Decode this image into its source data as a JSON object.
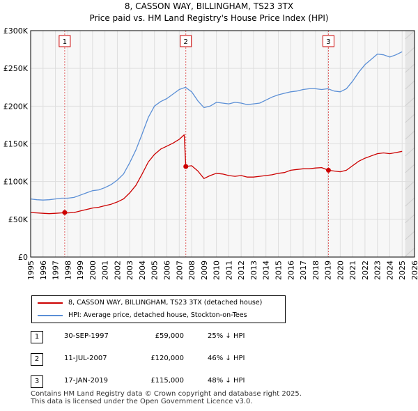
{
  "chart_data": {
    "type": "line",
    "title": "8, CASSON WAY, BILLINGHAM, TS23 3TX",
    "subtitle": "Price paid vs. HM Land Registry's House Price Index (HPI)",
    "xlabel": "",
    "ylabel": "",
    "xlim": [
      1995,
      2026
    ],
    "ylim": [
      0,
      300000
    ],
    "x_ticks": [
      "1995",
      "1996",
      "1997",
      "1998",
      "1999",
      "2000",
      "2001",
      "2002",
      "2003",
      "2004",
      "2005",
      "2006",
      "2007",
      "2008",
      "2009",
      "2010",
      "2011",
      "2012",
      "2013",
      "2014",
      "2015",
      "2016",
      "2017",
      "2018",
      "2019",
      "2020",
      "2021",
      "2022",
      "2023",
      "2024",
      "2025",
      "2026"
    ],
    "y_ticks": [
      {
        "value": 0,
        "label": "£0"
      },
      {
        "value": 50000,
        "label": "£50K"
      },
      {
        "value": 100000,
        "label": "£100K"
      },
      {
        "value": 150000,
        "label": "£150K"
      },
      {
        "value": 200000,
        "label": "£200K"
      },
      {
        "value": 250000,
        "label": "£250K"
      },
      {
        "value": 300000,
        "label": "£300K"
      }
    ],
    "grid": true,
    "shade_range": [
      2025.25,
      2026
    ],
    "series": [
      {
        "name": "8, CASSON WAY, BILLINGHAM, TS23 3TX (detached house)",
        "color": "#cc0000",
        "x": [
          1995.0,
          1995.5,
          1996.0,
          1996.5,
          1997.0,
          1997.5,
          1997.75,
          1998.0,
          1998.5,
          1999.0,
          1999.5,
          2000.0,
          2000.5,
          2001.0,
          2001.5,
          2002.0,
          2002.5,
          2003.0,
          2003.5,
          2004.0,
          2004.5,
          2005.0,
          2005.5,
          2006.0,
          2006.5,
          2007.0,
          2007.4,
          2007.53,
          2008.0,
          2008.5,
          2009.0,
          2009.5,
          2010.0,
          2010.5,
          2011.0,
          2011.5,
          2012.0,
          2012.5,
          2013.0,
          2013.5,
          2014.0,
          2014.5,
          2015.0,
          2015.5,
          2016.0,
          2016.5,
          2017.0,
          2017.5,
          2018.0,
          2018.5,
          2019.05,
          2019.5,
          2020.0,
          2020.5,
          2021.0,
          2021.5,
          2022.0,
          2022.5,
          2023.0,
          2023.5,
          2024.0,
          2024.5,
          2025.0
        ],
        "values": [
          59000,
          58500,
          58000,
          57500,
          58000,
          58500,
          59000,
          58500,
          59000,
          61000,
          63000,
          65000,
          66000,
          68000,
          70000,
          73000,
          77000,
          85000,
          95000,
          110000,
          126000,
          136000,
          143000,
          147000,
          151000,
          156000,
          162000,
          120000,
          121000,
          114000,
          104000,
          108000,
          111000,
          110000,
          108000,
          107000,
          108000,
          106000,
          106000,
          107000,
          108000,
          109000,
          111000,
          112000,
          115000,
          116000,
          117000,
          117000,
          118000,
          118500,
          115000,
          114000,
          113000,
          115000,
          121000,
          127000,
          131000,
          134000,
          137000,
          138000,
          137000,
          138500,
          140000
        ]
      },
      {
        "name": "HPI: Average price, detached house, Stockton-on-Tees",
        "color": "#5b8fd6",
        "x": [
          1995.0,
          1995.5,
          1996.0,
          1996.5,
          1997.0,
          1997.5,
          1998.0,
          1998.5,
          1999.0,
          1999.5,
          2000.0,
          2000.5,
          2001.0,
          2001.5,
          2002.0,
          2002.5,
          2003.0,
          2003.5,
          2004.0,
          2004.5,
          2005.0,
          2005.5,
          2006.0,
          2006.5,
          2007.0,
          2007.5,
          2008.0,
          2008.5,
          2009.0,
          2009.5,
          2010.0,
          2010.5,
          2011.0,
          2011.5,
          2012.0,
          2012.5,
          2013.0,
          2013.5,
          2014.0,
          2014.5,
          2015.0,
          2015.5,
          2016.0,
          2016.5,
          2017.0,
          2017.5,
          2018.0,
          2018.5,
          2019.0,
          2019.5,
          2020.0,
          2020.5,
          2021.0,
          2021.5,
          2022.0,
          2022.5,
          2023.0,
          2023.5,
          2024.0,
          2024.5,
          2025.0
        ],
        "values": [
          77000,
          76000,
          75500,
          76000,
          77000,
          78000,
          78000,
          79000,
          82000,
          85000,
          88000,
          89000,
          92000,
          96000,
          102000,
          110000,
          125000,
          142000,
          163000,
          185000,
          200000,
          206000,
          210000,
          216000,
          222000,
          225000,
          219000,
          207000,
          198000,
          200000,
          205000,
          204000,
          203000,
          205000,
          204000,
          202000,
          203000,
          204000,
          208000,
          212000,
          215000,
          217000,
          219000,
          220000,
          222000,
          223000,
          223000,
          222000,
          223000,
          220000,
          219000,
          223000,
          233000,
          245000,
          255000,
          262000,
          269000,
          268000,
          265000,
          268000,
          272000
        ]
      }
    ],
    "sale_markers": [
      {
        "label": "1",
        "x": 1997.75,
        "value": 59000
      },
      {
        "label": "2",
        "x": 2007.53,
        "value": 120000
      },
      {
        "label": "3",
        "x": 2019.05,
        "value": 115000
      }
    ]
  },
  "legend": {
    "property_label": "8, CASSON WAY, BILLINGHAM, TS23 3TX (detached house)",
    "hpi_label": "HPI: Average price, detached house, Stockton-on-Tees"
  },
  "sales": [
    {
      "num": "1",
      "date": "30-SEP-1997",
      "price": "£59,000",
      "delta": "25% ↓ HPI"
    },
    {
      "num": "2",
      "date": "11-JUL-2007",
      "price": "£120,000",
      "delta": "46% ↓ HPI"
    },
    {
      "num": "3",
      "date": "17-JAN-2019",
      "price": "£115,000",
      "delta": "48% ↓ HPI"
    }
  ],
  "footer": {
    "line1": "Contains HM Land Registry data © Crown copyright and database right 2025.",
    "line2": "This data is licensed under the Open Government Licence v3.0."
  }
}
